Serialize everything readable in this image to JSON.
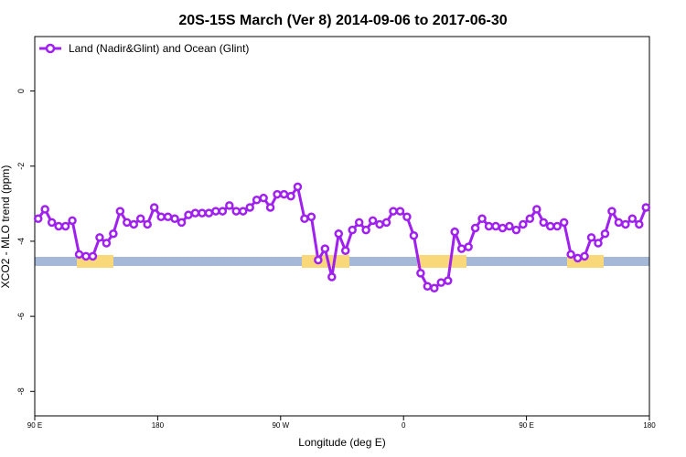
{
  "chart_data": {
    "type": "line",
    "title": "20S-15S March (Ver 8)   2014-09-06 to 2017-06-30",
    "x_label": "Longitude (deg E)",
    "y_label": "XCO2 - MLO trend (ppm)",
    "xlim": [
      90,
      540
    ],
    "ylim": [
      -8.65,
      1.45
    ],
    "xticks": [
      {
        "value": 90,
        "label": "90 E"
      },
      180,
      {
        "value": 270,
        "label": "90 W"
      },
      {
        "value": 360,
        "label": "0"
      },
      {
        "value": 450,
        "label": "90 E"
      },
      {
        "value": 540,
        "label": "180"
      }
    ],
    "yticks": [
      0,
      -2,
      -4,
      -6,
      -8
    ],
    "legend": "top-left",
    "x": [
      92.5,
      97.5,
      102.5,
      107.5,
      112.5,
      117.5,
      122.5,
      127.5,
      132.5,
      137.5,
      142.5,
      147.5,
      152.5,
      157.5,
      162.5,
      167.5,
      172.5,
      177.5,
      182.5,
      187.5,
      192.5,
      197.5,
      202.5,
      207.5,
      212.5,
      217.5,
      222.5,
      227.5,
      232.5,
      237.5,
      242.5,
      247.5,
      252.5,
      257.5,
      262.5,
      267.5,
      272.5,
      277.5,
      282.5,
      287.5,
      292.5,
      297.5,
      302.5,
      307.5,
      312.5,
      317.5,
      322.5,
      327.5,
      332.5,
      337.5,
      342.5,
      347.5,
      352.5,
      357.5,
      362.5,
      367.5,
      372.5,
      377.5,
      382.5,
      387.5,
      392.5,
      397.5,
      402.5,
      407.5,
      412.5,
      417.5,
      422.5,
      427.5,
      432.5,
      437.5,
      442.5,
      447.5,
      452.5,
      457.5,
      462.5,
      467.5,
      472.5,
      477.5,
      482.5,
      487.5,
      492.5,
      497.5,
      502.5,
      507.5,
      512.5,
      517.5,
      522.5,
      527.5,
      532.5,
      537.5
    ],
    "series": [
      {
        "name": "Land (Nadir&Glint) and Ocean (Glint)",
        "color": "#a020f0",
        "values": [
          -3.4,
          -3.15,
          -3.5,
          -3.6,
          -3.6,
          -3.45,
          -4.35,
          -4.4,
          -4.4,
          -3.9,
          -4.05,
          -3.8,
          -3.2,
          -3.5,
          -3.55,
          -3.4,
          -3.55,
          -3.1,
          -3.35,
          -3.35,
          -3.4,
          -3.5,
          -3.3,
          -3.25,
          -3.25,
          -3.25,
          -3.2,
          -3.2,
          -3.05,
          -3.2,
          -3.2,
          -3.1,
          -2.9,
          -2.85,
          -3.1,
          -2.75,
          -2.75,
          -2.8,
          -2.55,
          -3.4,
          -3.35,
          -4.5,
          -4.2,
          -4.95,
          -3.8,
          -4.25,
          -3.7,
          -3.5,
          -3.7,
          -3.45,
          -3.55,
          -3.5,
          -3.2,
          -3.2,
          -3.35,
          -3.85,
          -4.85,
          -5.2,
          -5.25,
          -5.1,
          -5.05,
          -3.75,
          -4.2,
          -4.15,
          -3.65,
          -3.4,
          -3.6,
          -3.6,
          -3.65,
          -3.6,
          -3.7,
          -3.55,
          -3.4,
          -3.15,
          -3.5,
          -3.6,
          -3.6,
          -3.5,
          -4.35,
          -4.45,
          -4.4,
          -3.9,
          -4.05,
          -3.8,
          -3.2,
          -3.5,
          -3.55,
          -3.4,
          -3.55,
          -3.1
        ]
      }
    ]
  }
}
